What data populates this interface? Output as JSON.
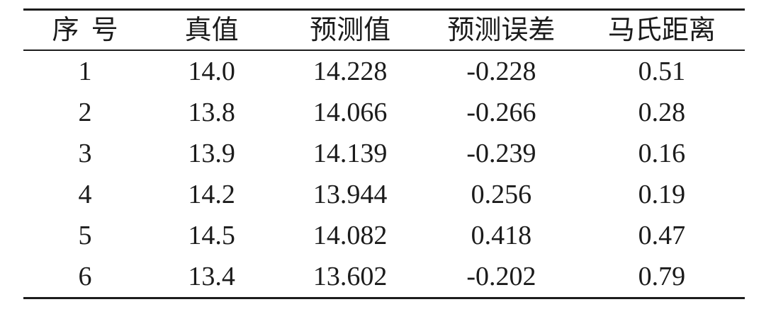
{
  "table": {
    "columns": [
      {
        "label": "序号"
      },
      {
        "label": "真值"
      },
      {
        "label": "预测值"
      },
      {
        "label": "预测误差"
      },
      {
        "label": "马氏距离"
      }
    ],
    "rows": [
      [
        "1",
        "14.0",
        "14.228",
        "-0.228",
        "0.51"
      ],
      [
        "2",
        "13.8",
        "14.066",
        "-0.266",
        "0.28"
      ],
      [
        "3",
        "13.9",
        "14.139",
        "-0.239",
        "0.16"
      ],
      [
        "4",
        "14.2",
        "13.944",
        "0.256",
        "0.19"
      ],
      [
        "5",
        "14.5",
        "14.082",
        "0.418",
        "0.47"
      ],
      [
        "6",
        "13.4",
        "13.602",
        "-0.202",
        "0.79"
      ]
    ],
    "style": {
      "rule_color": "#1c1c1c",
      "text_color": "#1b1b1b",
      "background": "#ffffff"
    }
  }
}
